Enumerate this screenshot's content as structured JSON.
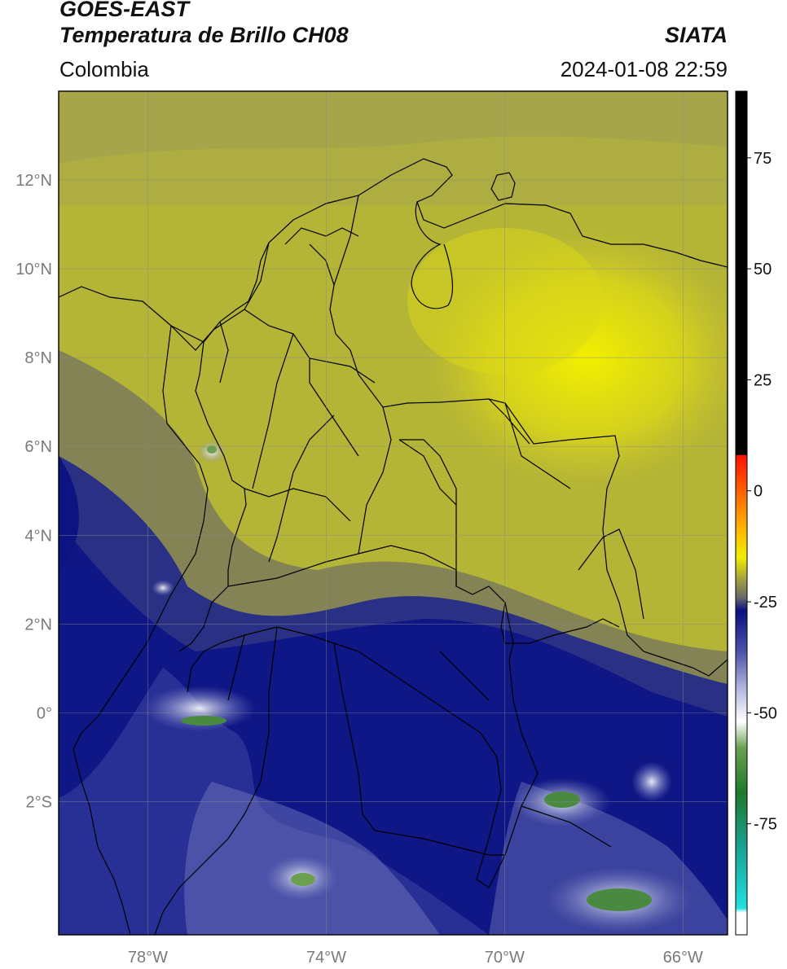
{
  "header": {
    "satellite": "GOES-EAST",
    "product": "Temperatura de Brillo CH08",
    "region": "Colombia",
    "agency": "SIATA",
    "timestamp": "2024-01-08 22:59"
  },
  "map": {
    "lon_range": [
      -80,
      -65
    ],
    "lat_range": [
      -5,
      14
    ],
    "lat_ticks": [
      {
        "value": 12,
        "label": "12°N"
      },
      {
        "value": 10,
        "label": "10°N"
      },
      {
        "value": 8,
        "label": "8°N"
      },
      {
        "value": 6,
        "label": "6°N"
      },
      {
        "value": 4,
        "label": "4°N"
      },
      {
        "value": 2,
        "label": "2°N"
      },
      {
        "value": 0,
        "label": "0°"
      },
      {
        "value": -2,
        "label": "2°S"
      }
    ],
    "lon_ticks": [
      {
        "value": -78,
        "label": "78°W"
      },
      {
        "value": -74,
        "label": "74°W"
      },
      {
        "value": -70,
        "label": "70°W"
      },
      {
        "value": -66,
        "label": "66°W"
      }
    ],
    "grid": true
  },
  "colorbar": {
    "range": [
      -100,
      90
    ],
    "ticks": [
      {
        "value": 75,
        "label": "75"
      },
      {
        "value": 50,
        "label": "50"
      },
      {
        "value": 25,
        "label": "25"
      },
      {
        "value": 0,
        "label": "0"
      },
      {
        "value": -25,
        "label": "-25"
      },
      {
        "value": -50,
        "label": "-50"
      },
      {
        "value": -75,
        "label": "-75"
      }
    ],
    "stops": [
      {
        "value": -100,
        "color": "#ffffff"
      },
      {
        "value": -95,
        "color": "#ffffff"
      },
      {
        "value": -94,
        "color": "#22e0e0"
      },
      {
        "value": -80,
        "color": "#1aa090"
      },
      {
        "value": -68,
        "color": "#1e7a2a"
      },
      {
        "value": -58,
        "color": "#6aa050"
      },
      {
        "value": -52,
        "color": "#ffffff"
      },
      {
        "value": -45,
        "color": "#b8bce0"
      },
      {
        "value": -36,
        "color": "#4a50a8"
      },
      {
        "value": -27,
        "color": "#0a1080"
      },
      {
        "value": -24,
        "color": "#6a6a6a"
      },
      {
        "value": -20,
        "color": "#a0a040"
      },
      {
        "value": -15,
        "color": "#f0ee00"
      },
      {
        "value": -8,
        "color": "#ffb000"
      },
      {
        "value": 0,
        "color": "#ff6000"
      },
      {
        "value": 8,
        "color": "#ff1000"
      },
      {
        "value": 8.1,
        "color": "#000000"
      },
      {
        "value": 90,
        "color": "#000000"
      }
    ]
  }
}
